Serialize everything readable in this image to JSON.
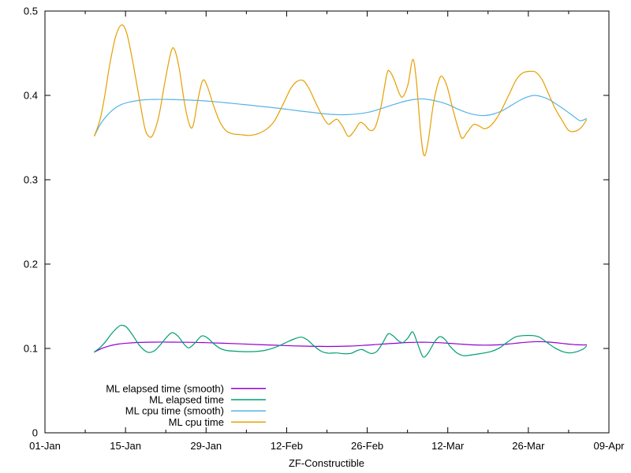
{
  "chart_data": {
    "type": "line",
    "title": "",
    "xlabel": "ZF-Constructible",
    "ylabel": "",
    "background_color": "#ffffff",
    "border_color": "#000000",
    "grid": false,
    "legend_position": "inside-bottom-left",
    "xlim_days": [
      0,
      98
    ],
    "ylim": [
      0,
      0.5
    ],
    "x_major_ticks": [
      {
        "day": 0,
        "label": "01-Jan"
      },
      {
        "day": 14,
        "label": "15-Jan"
      },
      {
        "day": 28,
        "label": "29-Jan"
      },
      {
        "day": 42,
        "label": "12-Feb"
      },
      {
        "day": 56,
        "label": "26-Feb"
      },
      {
        "day": 70,
        "label": "12-Mar"
      },
      {
        "day": 84,
        "label": "26-Mar"
      },
      {
        "day": 98,
        "label": "09-Apr"
      }
    ],
    "x_minor_tick_days": [
      7,
      21,
      35,
      49,
      63,
      77,
      91
    ],
    "y_major_ticks": [
      {
        "value": 0,
        "label": "0"
      },
      {
        "value": 0.1,
        "label": "0.1"
      },
      {
        "value": 0.2,
        "label": "0.2"
      },
      {
        "value": 0.3,
        "label": "0.3"
      },
      {
        "value": 0.4,
        "label": "0.4"
      },
      {
        "value": 0.5,
        "label": "0.5"
      }
    ],
    "series": [
      {
        "name": "ML elapsed time (smooth)",
        "color": "#9400d3",
        "points": [
          [
            8.6,
            0.0958
          ],
          [
            9.8,
            0.0998
          ],
          [
            11.2,
            0.103
          ],
          [
            12.8,
            0.1052
          ],
          [
            14.5,
            0.1064
          ],
          [
            16.5,
            0.1071
          ],
          [
            19.0,
            0.1075
          ],
          [
            22.0,
            0.1075
          ],
          [
            25.0,
            0.1073
          ],
          [
            28.0,
            0.1068
          ],
          [
            31.0,
            0.1062
          ],
          [
            34.0,
            0.1054
          ],
          [
            37.0,
            0.1046
          ],
          [
            40.0,
            0.1038
          ],
          [
            43.0,
            0.1031
          ],
          [
            45.5,
            0.1027
          ],
          [
            48.0,
            0.1024
          ],
          [
            50.5,
            0.1024
          ],
          [
            53.0,
            0.1028
          ],
          [
            55.5,
            0.1037
          ],
          [
            58.0,
            0.1049
          ],
          [
            60.5,
            0.106
          ],
          [
            62.5,
            0.1068
          ],
          [
            64.5,
            0.1073
          ],
          [
            66.5,
            0.1073
          ],
          [
            68.5,
            0.1068
          ],
          [
            70.5,
            0.106
          ],
          [
            72.5,
            0.105
          ],
          [
            74.5,
            0.1042
          ],
          [
            76.5,
            0.1039
          ],
          [
            78.5,
            0.1042
          ],
          [
            80.5,
            0.1052
          ],
          [
            82.5,
            0.1066
          ],
          [
            84.5,
            0.1078
          ],
          [
            86.0,
            0.1081
          ],
          [
            87.5,
            0.1076
          ],
          [
            89.0,
            0.1066
          ],
          [
            90.5,
            0.1055
          ],
          [
            92.0,
            0.1046
          ],
          [
            93.2,
            0.1042
          ],
          [
            94.1,
            0.1042
          ]
        ]
      },
      {
        "name": "ML elapsed time",
        "color": "#009e73",
        "points": [
          [
            8.6,
            0.0958
          ],
          [
            9.6,
            0.1012
          ],
          [
            10.5,
            0.1078
          ],
          [
            11.5,
            0.1168
          ],
          [
            12.5,
            0.1242
          ],
          [
            13.2,
            0.1274
          ],
          [
            14.1,
            0.1257
          ],
          [
            15.2,
            0.1162
          ],
          [
            16.3,
            0.1047
          ],
          [
            17.3,
            0.0977
          ],
          [
            18.1,
            0.0952
          ],
          [
            19.1,
            0.0977
          ],
          [
            20.1,
            0.1047
          ],
          [
            21.2,
            0.1137
          ],
          [
            22.1,
            0.1187
          ],
          [
            23.1,
            0.1147
          ],
          [
            24.1,
            0.1057
          ],
          [
            25.0,
            0.1007
          ],
          [
            26.1,
            0.1067
          ],
          [
            27.2,
            0.1147
          ],
          [
            28.2,
            0.1127
          ],
          [
            29.3,
            0.1057
          ],
          [
            30.4,
            0.1002
          ],
          [
            31.5,
            0.0977
          ],
          [
            33.0,
            0.0967
          ],
          [
            34.8,
            0.0962
          ],
          [
            36.5,
            0.0964
          ],
          [
            38.2,
            0.0977
          ],
          [
            40.0,
            0.1012
          ],
          [
            41.8,
            0.1067
          ],
          [
            43.3,
            0.1112
          ],
          [
            44.5,
            0.1134
          ],
          [
            45.6,
            0.1102
          ],
          [
            46.8,
            0.1027
          ],
          [
            48.0,
            0.0967
          ],
          [
            49.2,
            0.0944
          ],
          [
            50.6,
            0.0947
          ],
          [
            52.0,
            0.0937
          ],
          [
            53.2,
            0.0942
          ],
          [
            54.3,
            0.0977
          ],
          [
            55.1,
            0.0987
          ],
          [
            56.1,
            0.0954
          ],
          [
            56.8,
            0.094
          ],
          [
            57.7,
            0.0967
          ],
          [
            58.7,
            0.1067
          ],
          [
            59.6,
            0.117
          ],
          [
            60.4,
            0.1154
          ],
          [
            61.4,
            0.1092
          ],
          [
            62.2,
            0.107
          ],
          [
            63.1,
            0.1127
          ],
          [
            63.9,
            0.1197
          ],
          [
            64.6,
            0.1087
          ],
          [
            65.4,
            0.0937
          ],
          [
            65.9,
            0.0897
          ],
          [
            66.7,
            0.0957
          ],
          [
            67.7,
            0.1077
          ],
          [
            68.6,
            0.114
          ],
          [
            69.5,
            0.1107
          ],
          [
            70.5,
            0.1017
          ],
          [
            71.6,
            0.0947
          ],
          [
            72.8,
            0.0914
          ],
          [
            74.2,
            0.0924
          ],
          [
            75.8,
            0.094
          ],
          [
            77.5,
            0.0964
          ],
          [
            79.0,
            0.1007
          ],
          [
            80.5,
            0.1082
          ],
          [
            81.8,
            0.1137
          ],
          [
            83.2,
            0.1152
          ],
          [
            84.8,
            0.1152
          ],
          [
            86.0,
            0.1132
          ],
          [
            87.2,
            0.1072
          ],
          [
            88.6,
            0.1007
          ],
          [
            90.0,
            0.0962
          ],
          [
            91.2,
            0.0947
          ],
          [
            92.5,
            0.0964
          ],
          [
            93.5,
            0.0992
          ],
          [
            94.1,
            0.1027
          ]
        ]
      },
      {
        "name": "ML cpu time (smooth)",
        "color": "#56b4e9",
        "points": [
          [
            8.6,
            0.352
          ],
          [
            9.6,
            0.3655
          ],
          [
            10.7,
            0.3755
          ],
          [
            12.0,
            0.384
          ],
          [
            13.4,
            0.3895
          ],
          [
            15.0,
            0.3925
          ],
          [
            16.8,
            0.3945
          ],
          [
            19.0,
            0.3952
          ],
          [
            21.5,
            0.3952
          ],
          [
            24.0,
            0.3948
          ],
          [
            26.5,
            0.394
          ],
          [
            29.0,
            0.3928
          ],
          [
            31.5,
            0.3912
          ],
          [
            34.0,
            0.3895
          ],
          [
            36.5,
            0.3878
          ],
          [
            39.0,
            0.386
          ],
          [
            41.5,
            0.384
          ],
          [
            44.0,
            0.3818
          ],
          [
            46.5,
            0.3798
          ],
          [
            48.5,
            0.3782
          ],
          [
            50.5,
            0.3772
          ],
          [
            52.5,
            0.3772
          ],
          [
            54.5,
            0.3782
          ],
          [
            56.5,
            0.3805
          ],
          [
            58.5,
            0.3845
          ],
          [
            60.5,
            0.389
          ],
          [
            62.5,
            0.393
          ],
          [
            64.2,
            0.3952
          ],
          [
            65.8,
            0.3958
          ],
          [
            67.5,
            0.394
          ],
          [
            69.0,
            0.3915
          ],
          [
            70.5,
            0.3878
          ],
          [
            72.0,
            0.383
          ],
          [
            73.5,
            0.3792
          ],
          [
            75.0,
            0.3768
          ],
          [
            76.5,
            0.3762
          ],
          [
            78.0,
            0.378
          ],
          [
            79.5,
            0.382
          ],
          [
            81.0,
            0.388
          ],
          [
            82.5,
            0.394
          ],
          [
            83.8,
            0.398
          ],
          [
            85.0,
            0.4
          ],
          [
            86.3,
            0.3985
          ],
          [
            87.6,
            0.395
          ],
          [
            89.0,
            0.389
          ],
          [
            90.4,
            0.3825
          ],
          [
            91.8,
            0.3755
          ],
          [
            93.0,
            0.37
          ],
          [
            94.1,
            0.3725
          ]
        ]
      },
      {
        "name": "ML cpu time",
        "color": "#e69f00",
        "points": [
          [
            8.6,
            0.352
          ],
          [
            9.6,
            0.372
          ],
          [
            10.4,
            0.4
          ],
          [
            11.3,
            0.438
          ],
          [
            12.3,
            0.47
          ],
          [
            13.3,
            0.4835
          ],
          [
            14.2,
            0.474
          ],
          [
            15.2,
            0.442
          ],
          [
            16.4,
            0.396
          ],
          [
            17.3,
            0.363
          ],
          [
            17.9,
            0.3525
          ],
          [
            18.7,
            0.3525
          ],
          [
            19.8,
            0.376
          ],
          [
            20.9,
            0.418
          ],
          [
            21.9,
            0.4515
          ],
          [
            22.5,
            0.4545
          ],
          [
            23.3,
            0.433
          ],
          [
            24.3,
            0.389
          ],
          [
            25.2,
            0.3635
          ],
          [
            25.8,
            0.3655
          ],
          [
            26.5,
            0.392
          ],
          [
            27.4,
            0.4175
          ],
          [
            28.2,
            0.411
          ],
          [
            29.2,
            0.39
          ],
          [
            30.3,
            0.37
          ],
          [
            31.4,
            0.3585
          ],
          [
            32.6,
            0.3545
          ],
          [
            34.0,
            0.3535
          ],
          [
            35.5,
            0.3525
          ],
          [
            37.0,
            0.3545
          ],
          [
            38.5,
            0.36
          ],
          [
            39.8,
            0.369
          ],
          [
            41.2,
            0.387
          ],
          [
            42.7,
            0.408
          ],
          [
            43.8,
            0.4165
          ],
          [
            44.9,
            0.4175
          ],
          [
            45.9,
            0.408
          ],
          [
            47.0,
            0.392
          ],
          [
            48.1,
            0.377
          ],
          [
            49.2,
            0.366
          ],
          [
            50.1,
            0.3695
          ],
          [
            50.8,
            0.3715
          ],
          [
            51.7,
            0.3635
          ],
          [
            52.7,
            0.3515
          ],
          [
            53.7,
            0.3575
          ],
          [
            54.7,
            0.3675
          ],
          [
            55.5,
            0.3655
          ],
          [
            56.5,
            0.3585
          ],
          [
            57.4,
            0.3625
          ],
          [
            58.4,
            0.387
          ],
          [
            59.4,
            0.425
          ],
          [
            59.9,
            0.4285
          ],
          [
            60.6,
            0.42
          ],
          [
            61.6,
            0.402
          ],
          [
            62.2,
            0.3985
          ],
          [
            63.1,
            0.4135
          ],
          [
            63.9,
            0.4425
          ],
          [
            64.5,
            0.42
          ],
          [
            65.3,
            0.355
          ],
          [
            65.9,
            0.3285
          ],
          [
            66.6,
            0.346
          ],
          [
            67.5,
            0.39
          ],
          [
            68.4,
            0.4165
          ],
          [
            69.0,
            0.4225
          ],
          [
            69.9,
            0.41
          ],
          [
            70.9,
            0.383
          ],
          [
            71.9,
            0.359
          ],
          [
            72.5,
            0.349
          ],
          [
            73.4,
            0.3565
          ],
          [
            74.5,
            0.3655
          ],
          [
            75.5,
            0.3635
          ],
          [
            76.5,
            0.3605
          ],
          [
            77.8,
            0.3665
          ],
          [
            79.2,
            0.381
          ],
          [
            80.7,
            0.402
          ],
          [
            81.9,
            0.4185
          ],
          [
            83.0,
            0.4265
          ],
          [
            84.2,
            0.4285
          ],
          [
            85.3,
            0.4275
          ],
          [
            86.4,
            0.4185
          ],
          [
            87.5,
            0.402
          ],
          [
            88.7,
            0.384
          ],
          [
            89.9,
            0.37
          ],
          [
            91.0,
            0.3585
          ],
          [
            92.1,
            0.3575
          ],
          [
            93.2,
            0.362
          ],
          [
            94.1,
            0.371
          ]
        ]
      }
    ]
  }
}
